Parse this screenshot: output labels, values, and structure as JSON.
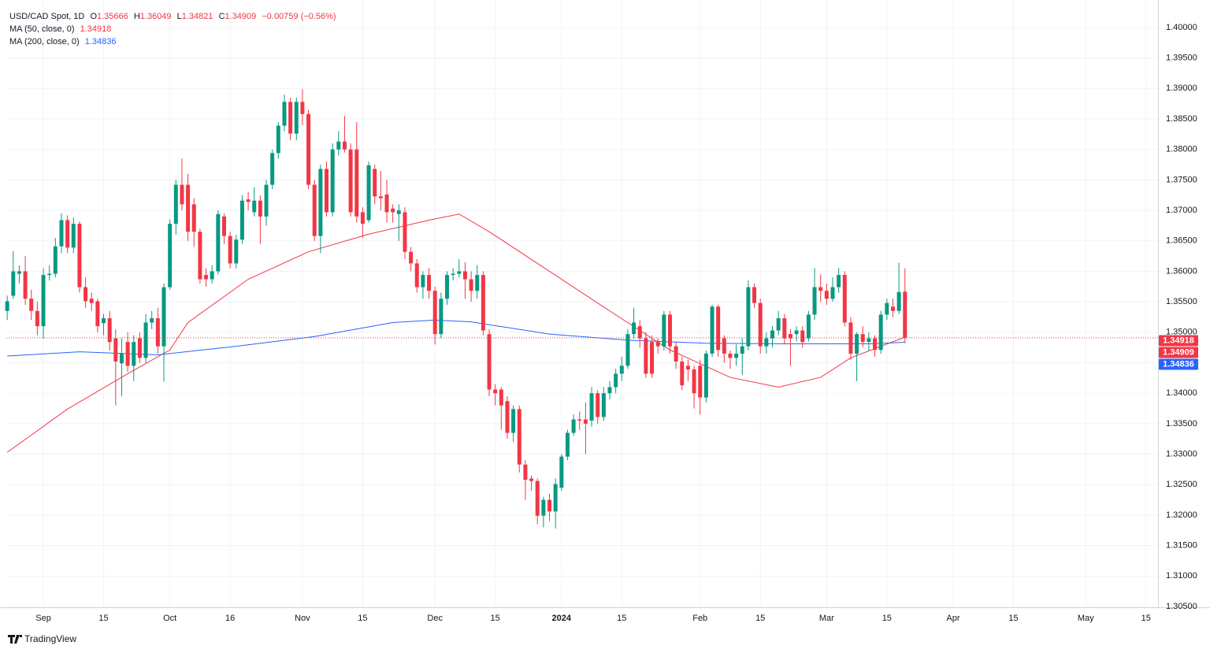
{
  "chart_data": {
    "type": "candlestick",
    "title": "USD/CAD Spot, 1D",
    "ohlc_letters": [
      "O",
      "H",
      "L",
      "C"
    ],
    "change": "−0.00759 (−0.56%)",
    "brand": "TradingView",
    "up_color": "#089981",
    "down_color": "#f23645",
    "grid": true,
    "xlim": [
      -0.15,
      191
    ],
    "ylim": [
      1.305,
      1.40452
    ],
    "xticks": [
      {
        "value": 6,
        "label": "Sep"
      },
      {
        "value": 16,
        "label": "15"
      },
      {
        "value": 27,
        "label": "Oct"
      },
      {
        "value": 37,
        "label": "16"
      },
      {
        "value": 49,
        "label": "Nov"
      },
      {
        "value": 59,
        "label": "15"
      },
      {
        "value": 71,
        "label": "Dec"
      },
      {
        "value": 81,
        "label": "15"
      },
      {
        "value": 92,
        "label": "2024"
      },
      {
        "value": 102,
        "label": "15"
      },
      {
        "value": 115,
        "label": "Feb"
      },
      {
        "value": 125,
        "label": "15"
      },
      {
        "value": 136,
        "label": "Mar"
      },
      {
        "value": 146,
        "label": "15"
      },
      {
        "value": 157,
        "label": "Apr"
      },
      {
        "value": 167,
        "label": "15"
      },
      {
        "value": 179,
        "label": "May"
      },
      {
        "value": 189,
        "label": "15"
      }
    ],
    "yticks": [
      {
        "value": 1.305,
        "label": "1.30500"
      },
      {
        "value": 1.31,
        "label": "1.31000"
      },
      {
        "value": 1.315,
        "label": "1.31500"
      },
      {
        "value": 1.32,
        "label": "1.32000"
      },
      {
        "value": 1.325,
        "label": "1.32500"
      },
      {
        "value": 1.33,
        "label": "1.33000"
      },
      {
        "value": 1.335,
        "label": "1.33500"
      },
      {
        "value": 1.34,
        "label": "1.34000"
      },
      {
        "value": 1.345,
        "label": "1.34500"
      },
      {
        "value": 1.35,
        "label": "1.35000"
      },
      {
        "value": 1.355,
        "label": "1.35500"
      },
      {
        "value": 1.36,
        "label": "1.36000"
      },
      {
        "value": 1.365,
        "label": "1.36500"
      },
      {
        "value": 1.37,
        "label": "1.37000"
      },
      {
        "value": 1.375,
        "label": "1.37500"
      },
      {
        "value": 1.38,
        "label": "1.38000"
      },
      {
        "value": 1.385,
        "label": "1.38500"
      },
      {
        "value": 1.39,
        "label": "1.39000"
      },
      {
        "value": 1.395,
        "label": "1.39500"
      },
      {
        "value": 1.4,
        "label": "1.40000"
      }
    ],
    "open": [
      1.3535,
      1.356,
      1.3596,
      1.36,
      1.3555,
      1.3535,
      1.351,
      1.3594,
      1.3596,
      1.3641,
      1.3684,
      1.3639,
      1.3678,
      1.3574,
      1.3555,
      1.3551,
      1.3515,
      1.3523,
      1.349,
      1.3449,
      1.3484,
      1.3445,
      1.349,
      1.3458,
      1.3516,
      1.3523,
      1.3477,
      1.3574,
      1.3678,
      1.3742,
      1.3742,
      1.371,
      1.3665,
      1.3594,
      1.3587,
      1.36,
      1.369,
      1.3658,
      1.3613,
      1.3652,
      1.3718,
      1.3697,
      1.3716,
      1.369,
      1.3742,
      1.3794,
      1.3839,
      1.3878,
      1.3826,
      1.3878,
      1.3858,
      1.3742,
      1.3658,
      1.3768,
      1.3697,
      1.38,
      1.3813,
      1.38,
      1.38,
      1.3697,
      1.3684,
      1.3768,
      1.3723,
      1.3726,
      1.3703,
      1.3694,
      1.3697,
      1.3632,
      1.3613,
      1.3574,
      1.3594,
      1.3568,
      1.3497,
      1.3555,
      1.3594,
      1.3596,
      1.36,
      1.3587,
      1.3568,
      1.3594,
      1.3497,
      1.3406,
      1.3406,
      1.3387,
      1.3335,
      1.3374,
      1.3283,
      1.326,
      1.3256,
      1.3199,
      1.3225,
      1.3206,
      1.3245,
      1.3296,
      1.3335,
      1.3357,
      1.3357,
      1.3355,
      1.34,
      1.3361,
      1.34,
      1.341,
      1.3432,
      1.3445,
      1.3497,
      1.351,
      1.349,
      1.3484,
      1.3484,
      1.3477,
      1.3529,
      1.3477,
      1.3452,
      1.3445,
      1.3439,
      1.3445,
      1.3393,
      1.3465,
      1.3542,
      1.349,
      1.3465,
      1.3458,
      1.3465,
      1.3477,
      1.3574,
      1.3548,
      1.3477,
      1.349,
      1.3503,
      1.3523,
      1.3497,
      1.3497,
      1.3503,
      1.349,
      1.3529,
      1.3574,
      1.3568,
      1.3555,
      1.3574,
      1.3594,
      1.3516,
      1.3465,
      1.3497,
      1.3484,
      1.349,
      1.3471,
      1.3529,
      1.3542,
      1.3535,
      1.35666
    ],
    "high": [
      1.356,
      1.3633,
      1.361,
      1.3625,
      1.357,
      1.355,
      1.3605,
      1.361,
      1.3655,
      1.3695,
      1.3692,
      1.3688,
      1.3682,
      1.359,
      1.3565,
      1.3555,
      1.353,
      1.3535,
      1.3505,
      1.349,
      1.35,
      1.3495,
      1.35,
      1.353,
      1.3535,
      1.354,
      1.358,
      1.3685,
      1.375,
      1.3785,
      1.376,
      1.372,
      1.367,
      1.3605,
      1.361,
      1.37,
      1.3695,
      1.3665,
      1.366,
      1.3725,
      1.373,
      1.3738,
      1.3725,
      1.375,
      1.38,
      1.3845,
      1.389,
      1.3885,
      1.3885,
      1.3899,
      1.3865,
      1.375,
      1.3775,
      1.378,
      1.381,
      1.383,
      1.3855,
      1.381,
      1.3845,
      1.3705,
      1.378,
      1.3775,
      1.3765,
      1.375,
      1.371,
      1.371,
      1.3705,
      1.364,
      1.362,
      1.36,
      1.3605,
      1.3575,
      1.3565,
      1.36,
      1.3605,
      1.362,
      1.3615,
      1.36,
      1.361,
      1.36,
      1.3505,
      1.3415,
      1.341,
      1.3395,
      1.338,
      1.338,
      1.329,
      1.3265,
      1.326,
      1.323,
      1.3235,
      1.326,
      1.33,
      1.334,
      1.3365,
      1.337,
      1.3385,
      1.341,
      1.3405,
      1.341,
      1.342,
      1.344,
      1.346,
      1.3505,
      1.354,
      1.352,
      1.35,
      1.3495,
      1.349,
      1.3535,
      1.3535,
      1.3485,
      1.346,
      1.3455,
      1.3445,
      1.3455,
      1.347,
      1.3545,
      1.3545,
      1.3495,
      1.347,
      1.348,
      1.349,
      1.3585,
      1.358,
      1.3555,
      1.35,
      1.351,
      1.3535,
      1.353,
      1.3505,
      1.351,
      1.351,
      1.3535,
      1.3605,
      1.3595,
      1.358,
      1.359,
      1.3605,
      1.36,
      1.3525,
      1.35,
      1.351,
      1.35,
      1.3495,
      1.3535,
      1.3555,
      1.3555,
      1.3614,
      1.36049
    ],
    "low": [
      1.352,
      1.3555,
      1.358,
      1.3545,
      1.352,
      1.3495,
      1.349,
      1.3585,
      1.359,
      1.363,
      1.363,
      1.363,
      1.3565,
      1.354,
      1.3535,
      1.35,
      1.3495,
      1.347,
      1.338,
      1.3395,
      1.3435,
      1.342,
      1.345,
      1.345,
      1.3505,
      1.3465,
      1.3419,
      1.357,
      1.366,
      1.37,
      1.365,
      1.364,
      1.358,
      1.3575,
      1.358,
      1.3595,
      1.3645,
      1.3605,
      1.3605,
      1.3645,
      1.37,
      1.369,
      1.3645,
      1.3675,
      1.3735,
      1.3785,
      1.383,
      1.3815,
      1.3815,
      1.384,
      1.3735,
      1.365,
      1.363,
      1.369,
      1.369,
      1.379,
      1.3795,
      1.369,
      1.368,
      1.3655,
      1.368,
      1.371,
      1.37,
      1.368,
      1.368,
      1.365,
      1.362,
      1.36,
      1.3565,
      1.3555,
      1.3555,
      1.348,
      1.349,
      1.3545,
      1.3585,
      1.359,
      1.3555,
      1.355,
      1.3555,
      1.3495,
      1.3395,
      1.338,
      1.334,
      1.3325,
      1.332,
      1.327,
      1.3225,
      1.324,
      1.3185,
      1.318,
      1.319,
      1.3178,
      1.324,
      1.329,
      1.333,
      1.334,
      1.33,
      1.3345,
      1.335,
      1.3355,
      1.339,
      1.34,
      1.342,
      1.344,
      1.349,
      1.3475,
      1.3425,
      1.3425,
      1.3465,
      1.347,
      1.3465,
      1.344,
      1.3405,
      1.342,
      1.3375,
      1.3365,
      1.3385,
      1.346,
      1.346,
      1.345,
      1.344,
      1.3445,
      1.343,
      1.347,
      1.354,
      1.3465,
      1.3465,
      1.3475,
      1.3495,
      1.348,
      1.3445,
      1.3485,
      1.3475,
      1.3485,
      1.352,
      1.355,
      1.3545,
      1.355,
      1.3565,
      1.351,
      1.3455,
      1.342,
      1.3475,
      1.347,
      1.346,
      1.3465,
      1.352,
      1.3525,
      1.353,
      1.34821
    ],
    "close": [
      1.3551,
      1.36,
      1.36,
      1.3555,
      1.3535,
      1.351,
      1.3594,
      1.3596,
      1.3641,
      1.3684,
      1.3639,
      1.3678,
      1.3574,
      1.3551,
      1.3548,
      1.351,
      1.3523,
      1.3484,
      1.3452,
      1.3465,
      1.3445,
      1.3484,
      1.3458,
      1.3516,
      1.3523,
      1.3477,
      1.3574,
      1.3678,
      1.3742,
      1.371,
      1.3665,
      1.3665,
      1.3587,
      1.3587,
      1.36,
      1.3694,
      1.3658,
      1.3613,
      1.3652,
      1.3716,
      1.3714,
      1.3716,
      1.369,
      1.3742,
      1.3794,
      1.3839,
      1.3878,
      1.3826,
      1.3878,
      1.3858,
      1.3742,
      1.3658,
      1.3768,
      1.3697,
      1.38,
      1.3813,
      1.38,
      1.3697,
      1.369,
      1.3678,
      1.3774,
      1.3723,
      1.372,
      1.3697,
      1.3697,
      1.37,
      1.3632,
      1.3613,
      1.3574,
      1.3594,
      1.3568,
      1.3497,
      1.3555,
      1.3594,
      1.3596,
      1.36,
      1.3587,
      1.3568,
      1.3594,
      1.3503,
      1.3406,
      1.34,
      1.338,
      1.3335,
      1.3374,
      1.3283,
      1.3258,
      1.3256,
      1.3199,
      1.3225,
      1.3206,
      1.3251,
      1.3296,
      1.3335,
      1.3357,
      1.3355,
      1.335,
      1.34,
      1.3361,
      1.34,
      1.341,
      1.3432,
      1.3445,
      1.3497,
      1.3516,
      1.349,
      1.3432,
      1.3432,
      1.3477,
      1.3529,
      1.3477,
      1.3452,
      1.3413,
      1.3439,
      1.34,
      1.3393,
      1.3465,
      1.3542,
      1.3471,
      1.3465,
      1.3458,
      1.3465,
      1.3477,
      1.3574,
      1.3548,
      1.3477,
      1.349,
      1.3503,
      1.3523,
      1.349,
      1.349,
      1.3503,
      1.3484,
      1.3529,
      1.3574,
      1.3568,
      1.3555,
      1.3574,
      1.3594,
      1.3516,
      1.3465,
      1.3497,
      1.3484,
      1.349,
      1.3471,
      1.3529,
      1.3548,
      1.3535,
      1.3566,
      1.34909
    ],
    "overlays": [
      {
        "name": "MA (50, close, 0)",
        "color": "#f23645",
        "x": [
          0,
          10,
          20,
          27,
          30,
          40,
          50,
          60,
          70,
          75,
          80,
          90,
          100,
          110,
          120,
          128,
          135,
          140,
          145,
          149
        ],
        "values": [
          1.3303,
          1.3374,
          1.3432,
          1.3471,
          1.3516,
          1.3587,
          1.3632,
          1.3661,
          1.3684,
          1.3694,
          1.3665,
          1.36,
          1.3535,
          1.3471,
          1.3426,
          1.341,
          1.3426,
          1.3458,
          1.3477,
          1.34918
        ]
      },
      {
        "name": "MA (200, close, 0)",
        "color": "#2962ff",
        "x": [
          0,
          12,
          25,
          38,
          51,
          64,
          71,
          77,
          90,
          103,
          116,
          130,
          143,
          149
        ],
        "values": [
          1.3461,
          1.3468,
          1.3463,
          1.3477,
          1.3493,
          1.3516,
          1.352,
          1.3517,
          1.3497,
          1.3487,
          1.3482,
          1.3481,
          1.3481,
          1.34836
        ]
      }
    ]
  }
}
